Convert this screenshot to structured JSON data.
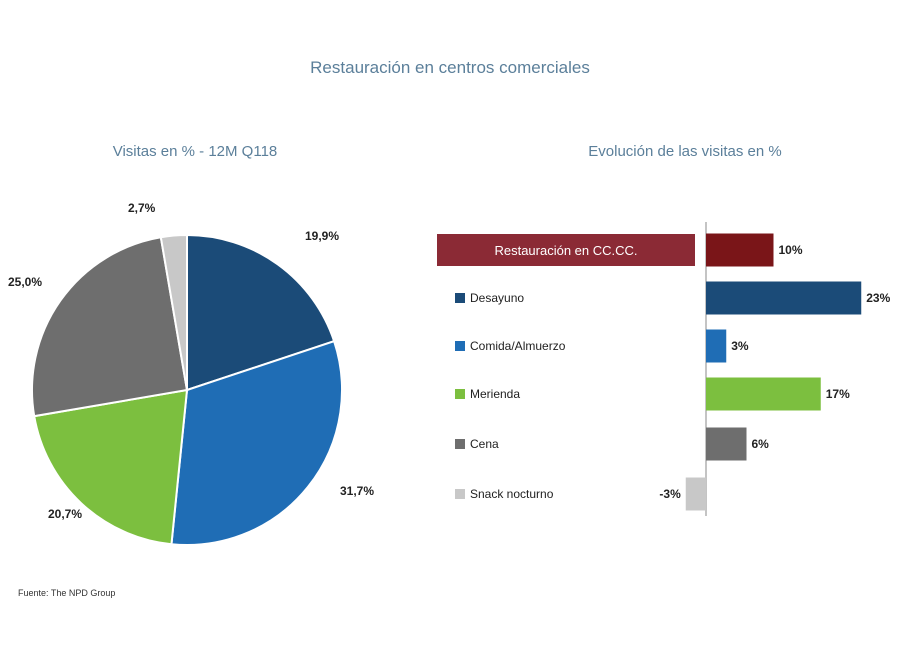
{
  "title": "Restauración en centros comerciales",
  "source": "Fuente: The NPD Group",
  "chart_data": [
    {
      "type": "pie",
      "title": "Visitas en % - 12M Q118",
      "slices": [
        {
          "label": "Desayuno",
          "value": 19.9,
          "display": "19,9%",
          "color": "#1b4b78"
        },
        {
          "label": "Comida/Almuerzo",
          "value": 31.7,
          "display": "31,7%",
          "color": "#1f6db5"
        },
        {
          "label": "Merienda",
          "value": 20.7,
          "display": "20,7%",
          "color": "#7cbf3f"
        },
        {
          "label": "Cena",
          "value": 25.0,
          "display": "25,0%",
          "color": "#6e6e6e"
        },
        {
          "label": "Snack nocturno",
          "value": 2.7,
          "display": "2,7%",
          "color": "#c8c8c8"
        }
      ]
    },
    {
      "type": "bar",
      "orientation": "horizontal",
      "title": "Evolución de las visitas en %",
      "header_label": "Restauración en CC.CC.",
      "header_color": "#8b2a35",
      "categories": [
        "Restauración en CC.CC.",
        "Desayuno",
        "Comida/Almuerzo",
        "Merienda",
        "Cena",
        "Snack nocturno"
      ],
      "values": [
        10,
        23,
        3,
        17,
        6,
        -3
      ],
      "display": [
        "10%",
        "23%",
        "3%",
        "17%",
        "6%",
        "-3%"
      ],
      "colors": [
        "#7a1518",
        "#1b4b78",
        "#1f6db5",
        "#7cbf3f",
        "#6e6e6e",
        "#c8c8c8"
      ]
    }
  ]
}
